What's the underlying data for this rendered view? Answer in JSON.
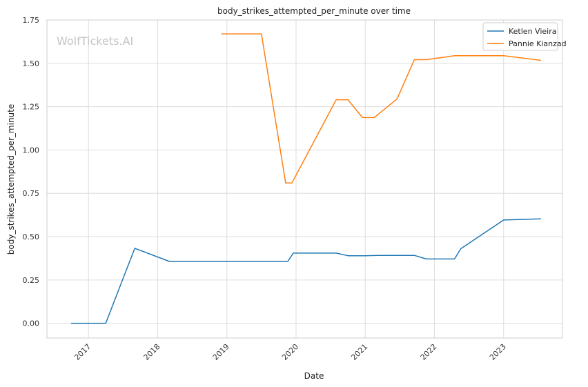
{
  "chart_data": {
    "type": "line",
    "title": "body_strikes_attempted_per_minute over time",
    "xlabel": "Date",
    "ylabel": "body_strikes_attempted_per_minute",
    "watermark": "WolfTickets.AI",
    "x_ticks": [
      "2017",
      "2018",
      "2019",
      "2020",
      "2021",
      "2022",
      "2023"
    ],
    "y_ticks": [
      "0.00",
      "0.25",
      "0.50",
      "0.75",
      "1.00",
      "1.25",
      "1.50",
      "1.75"
    ],
    "xlim": [
      2016.4,
      2023.85
    ],
    "ylim": [
      -0.085,
      1.75
    ],
    "grid": true,
    "legend_position": "top-right",
    "series": [
      {
        "name": "Ketlen Vieira",
        "color": "#1f77b4",
        "points": [
          [
            2016.75,
            0.0
          ],
          [
            2017.25,
            0.0
          ],
          [
            2017.67,
            0.433
          ],
          [
            2018.17,
            0.357
          ],
          [
            2019.25,
            0.357
          ],
          [
            2019.88,
            0.357
          ],
          [
            2019.96,
            0.405
          ],
          [
            2020.58,
            0.405
          ],
          [
            2020.75,
            0.39
          ],
          [
            2021.0,
            0.39
          ],
          [
            2021.17,
            0.392
          ],
          [
            2021.71,
            0.392
          ],
          [
            2021.88,
            0.371
          ],
          [
            2022.29,
            0.371
          ],
          [
            2022.38,
            0.43
          ],
          [
            2023.0,
            0.596
          ],
          [
            2023.54,
            0.603
          ]
        ]
      },
      {
        "name": "Pannie Kianzad",
        "color": "#ff7f0e",
        "points": [
          [
            2018.92,
            1.67
          ],
          [
            2019.5,
            1.67
          ],
          [
            2019.85,
            0.81
          ],
          [
            2019.94,
            0.81
          ],
          [
            2020.58,
            1.29
          ],
          [
            2020.75,
            1.29
          ],
          [
            2020.96,
            1.187
          ],
          [
            2021.13,
            1.187
          ],
          [
            2021.46,
            1.295
          ],
          [
            2021.71,
            1.521
          ],
          [
            2021.88,
            1.521
          ],
          [
            2022.29,
            1.544
          ],
          [
            2023.0,
            1.544
          ],
          [
            2023.54,
            1.517
          ]
        ]
      }
    ]
  }
}
